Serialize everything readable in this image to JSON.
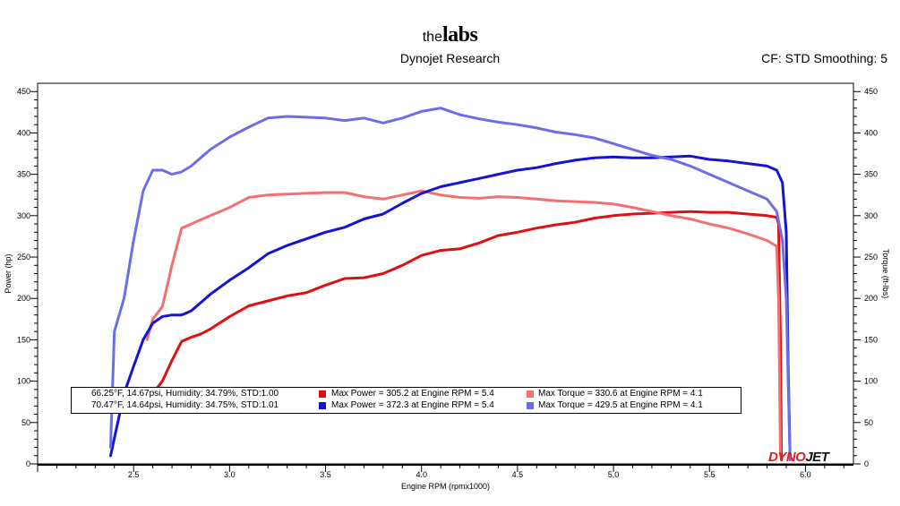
{
  "header": {
    "brand_small": "the",
    "brand_big": "labs",
    "subtitle": "Dynojet Research",
    "corrections": "CF: STD Smoothing: 5"
  },
  "logo": {
    "part1": "DYNO",
    "part2": "JET",
    "color1": "#e31b1b",
    "color2": "#111111"
  },
  "legend": {
    "rows": [
      {
        "conditions": "66.25°F, 14.67psi, Humidity: 34.79%, STD:1.00",
        "power": "Max Power = 305.2 at Engine RPM = 5.4",
        "torque": "Max Torque = 330.6 at Engine RPM = 4.1"
      },
      {
        "conditions": "70.47°F, 14.64psi, Humidity: 34.75%, STD:1.01",
        "power": "Max Power = 372.3 at Engine RPM = 5.4",
        "torque": "Max Torque = 429.5 at Engine RPM = 4.1"
      }
    ]
  },
  "chart_data": {
    "type": "line",
    "xlabel": "Engine RPM (rpmx1000)",
    "ylabel": "Power (hp)",
    "y2label": "Torque (ft-lbs)",
    "xlim": [
      2.0,
      6.25
    ],
    "ylim": [
      0,
      460
    ],
    "xticks": [
      "2.5",
      "3.0",
      "3.5",
      "4.0",
      "4.5",
      "5.0",
      "5.5",
      "6.0"
    ],
    "yticks": [
      "0",
      "50",
      "100",
      "150",
      "200",
      "250",
      "300",
      "350",
      "400",
      "450"
    ],
    "grid": false,
    "series": [
      {
        "name": "Max Power = 305.2 at Engine RPM = 5.4",
        "axis": "left",
        "color": "#e01010",
        "x": [
          2.57,
          2.6,
          2.65,
          2.7,
          2.75,
          2.8,
          2.85,
          2.9,
          3.0,
          3.1,
          3.2,
          3.3,
          3.4,
          3.5,
          3.6,
          3.7,
          3.8,
          3.9,
          4.0,
          4.1,
          4.2,
          4.3,
          4.4,
          4.5,
          4.6,
          4.7,
          4.8,
          4.9,
          5.0,
          5.1,
          5.2,
          5.3,
          5.4,
          5.5,
          5.6,
          5.7,
          5.8,
          5.85,
          5.86,
          5.87,
          5.875
        ],
        "y": [
          80,
          85,
          100,
          125,
          148,
          153,
          157,
          163,
          178,
          191,
          197,
          203,
          207,
          216,
          224,
          225,
          230,
          240,
          252,
          258,
          260,
          267,
          276,
          280,
          285,
          289,
          292,
          297,
          300,
          302,
          303,
          304,
          305,
          304,
          304,
          302,
          300,
          298,
          290,
          150,
          5
        ]
      },
      {
        "name": "Max Torque = 330.6 at Engine RPM = 4.1",
        "axis": "right",
        "color": "#f27070",
        "x": [
          2.57,
          2.6,
          2.65,
          2.7,
          2.75,
          2.8,
          2.85,
          2.9,
          3.0,
          3.1,
          3.2,
          3.3,
          3.4,
          3.5,
          3.6,
          3.7,
          3.8,
          3.9,
          4.0,
          4.1,
          4.2,
          4.3,
          4.4,
          4.5,
          4.6,
          4.7,
          4.8,
          4.9,
          5.0,
          5.1,
          5.2,
          5.3,
          5.4,
          5.5,
          5.6,
          5.7,
          5.8,
          5.85,
          5.86,
          5.87
        ],
        "y": [
          150,
          175,
          190,
          240,
          285,
          290,
          295,
          300,
          310,
          322,
          325,
          326,
          327,
          328,
          328,
          323,
          320,
          325,
          330,
          325,
          322,
          321,
          323,
          322,
          320,
          318,
          317,
          316,
          314,
          310,
          305,
          300,
          296,
          290,
          285,
          278,
          270,
          263,
          200,
          10
        ]
      },
      {
        "name": "Max Power = 372.3 at Engine RPM = 5.4",
        "axis": "left",
        "color": "#1414d2",
        "x": [
          2.38,
          2.45,
          2.5,
          2.55,
          2.6,
          2.65,
          2.7,
          2.75,
          2.8,
          2.9,
          3.0,
          3.1,
          3.2,
          3.3,
          3.4,
          3.5,
          3.6,
          3.7,
          3.8,
          3.9,
          4.0,
          4.1,
          4.2,
          4.3,
          4.4,
          4.5,
          4.6,
          4.7,
          4.8,
          4.9,
          5.0,
          5.1,
          5.2,
          5.3,
          5.4,
          5.5,
          5.6,
          5.7,
          5.8,
          5.85,
          5.88,
          5.9,
          5.91,
          5.92
        ],
        "y": [
          10,
          85,
          118,
          150,
          170,
          178,
          180,
          180,
          185,
          205,
          222,
          237,
          254,
          264,
          272,
          280,
          286,
          296,
          302,
          315,
          327,
          335,
          340,
          345,
          350,
          355,
          358,
          363,
          367,
          370,
          371,
          370,
          370,
          371,
          372,
          368,
          366,
          363,
          360,
          355,
          340,
          280,
          120,
          5
        ]
      },
      {
        "name": "Max Torque = 429.5 at Engine RPM = 4.1",
        "axis": "right",
        "color": "#6d6de8",
        "x": [
          2.38,
          2.4,
          2.45,
          2.5,
          2.55,
          2.6,
          2.65,
          2.7,
          2.75,
          2.8,
          2.9,
          3.0,
          3.1,
          3.2,
          3.3,
          3.4,
          3.5,
          3.6,
          3.7,
          3.8,
          3.9,
          4.0,
          4.1,
          4.2,
          4.3,
          4.4,
          4.5,
          4.6,
          4.7,
          4.8,
          4.9,
          5.0,
          5.1,
          5.2,
          5.3,
          5.4,
          5.5,
          5.6,
          5.7,
          5.8,
          5.85,
          5.88,
          5.9,
          5.91,
          5.92
        ],
        "y": [
          20,
          160,
          200,
          270,
          330,
          355,
          355,
          350,
          353,
          360,
          380,
          395,
          407,
          418,
          420,
          419,
          418,
          415,
          418,
          412,
          418,
          426,
          430,
          422,
          417,
          413,
          410,
          406,
          401,
          398,
          394,
          387,
          380,
          373,
          368,
          360,
          350,
          340,
          330,
          320,
          305,
          270,
          200,
          100,
          5
        ]
      }
    ]
  }
}
